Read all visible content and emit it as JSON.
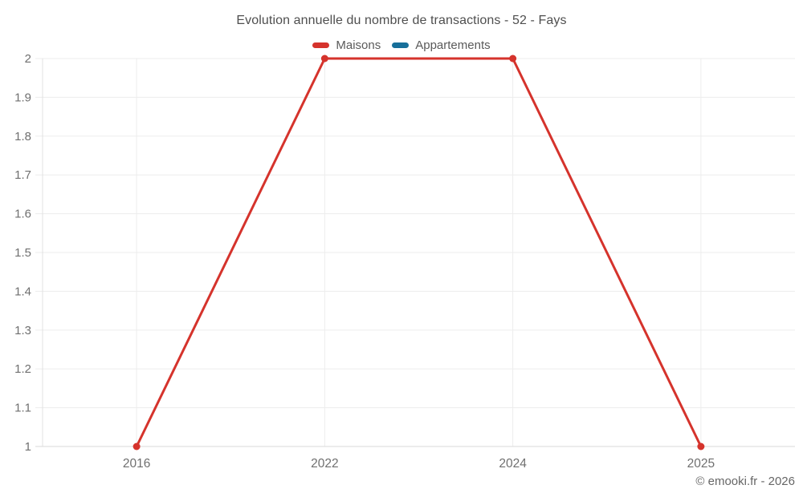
{
  "chart_data": {
    "type": "line",
    "title": "Evolution annuelle du nombre de transactions - 52 - Fays",
    "categories": [
      "2016",
      "2022",
      "2024",
      "2025"
    ],
    "series": [
      {
        "name": "Maisons",
        "color": "#d5332c",
        "values": [
          1,
          2,
          2,
          1
        ]
      },
      {
        "name": "Appartements",
        "color": "#176f9a",
        "values": [
          null,
          null,
          null,
          null
        ]
      }
    ],
    "xlabel": "",
    "ylabel": "",
    "ylim": [
      1,
      2
    ],
    "ytick_step": 0.1,
    "grid": true,
    "legend_position": "top",
    "copyright": "© emooki.fr - 2026",
    "colors": {
      "grid": "#ededed",
      "axis_y": "#e0e0e0",
      "axis_x": "#d8d8d8",
      "tick_text": "#6f6f6f",
      "title_text": "#4f4f4f",
      "legend_text": "#5a5a5a",
      "copyright_text": "#666666",
      "background": "#ffffff"
    }
  }
}
